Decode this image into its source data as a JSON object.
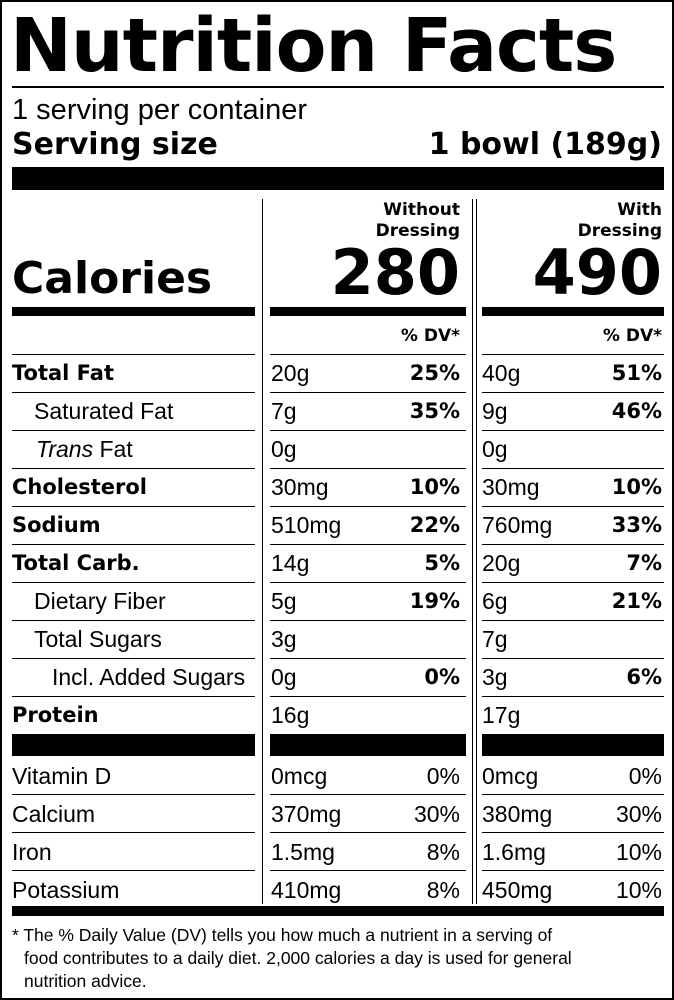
{
  "title": "Nutrition Facts",
  "servings_per_container": "1 serving per container",
  "serving_size_label": "Serving size",
  "serving_size_value": "1 bowl (189g)",
  "columns": [
    {
      "header_line1": "Without",
      "header_line2": "Dressing",
      "calories": "280",
      "dv_header": "% DV*"
    },
    {
      "header_line1": "With",
      "header_line2": "Dressing",
      "calories": "490",
      "dv_header": "% DV*"
    }
  ],
  "calories_label": "Calories",
  "nutrients": [
    {
      "label": "Total Fat",
      "col1_amount": "20g",
      "col1_dv": "25%",
      "col2_amount": "40g",
      "col2_dv": "51%"
    },
    {
      "label": "Saturated Fat",
      "col1_amount": "7g",
      "col1_dv": "35%",
      "col2_amount": "9g",
      "col2_dv": "46%"
    },
    {
      "label_italic": "Trans",
      "label": " Fat",
      "col1_amount": "0g",
      "col1_dv": "",
      "col2_amount": "0g",
      "col2_dv": ""
    },
    {
      "label": "Cholesterol",
      "col1_amount": "30mg",
      "col1_dv": "10%",
      "col2_amount": "30mg",
      "col2_dv": "10%"
    },
    {
      "label": "Sodium",
      "col1_amount": "510mg",
      "col1_dv": "22%",
      "col2_amount": "760mg",
      "col2_dv": "33%"
    },
    {
      "label": "Total Carb.",
      "col1_amount": "14g",
      "col1_dv": "5%",
      "col2_amount": "20g",
      "col2_dv": "7%"
    },
    {
      "label": "Dietary Fiber",
      "col1_amount": "5g",
      "col1_dv": "19%",
      "col2_amount": "6g",
      "col2_dv": "21%"
    },
    {
      "label": "Total Sugars",
      "col1_amount": "3g",
      "col1_dv": "",
      "col2_amount": "7g",
      "col2_dv": ""
    },
    {
      "label": "Incl. Added Sugars",
      "col1_amount": "0g",
      "col1_dv": "0%",
      "col2_amount": "3g",
      "col2_dv": "6%"
    },
    {
      "label": "Protein",
      "col1_amount": "16g",
      "col1_dv": "",
      "col2_amount": "17g",
      "col2_dv": ""
    }
  ],
  "vitamins": [
    {
      "label": "Vitamin D",
      "col1_amount": "0mcg",
      "col1_dv": "0%",
      "col2_amount": "0mcg",
      "col2_dv": "0%"
    },
    {
      "label": "Calcium",
      "col1_amount": "370mg",
      "col1_dv": "30%",
      "col2_amount": "380mg",
      "col2_dv": "30%"
    },
    {
      "label": "Iron",
      "col1_amount": "1.5mg",
      "col1_dv": "8%",
      "col2_amount": "1.6mg",
      "col2_dv": "10%"
    },
    {
      "label": "Potassium",
      "col1_amount": "410mg",
      "col1_dv": "8%",
      "col2_amount": "450mg",
      "col2_dv": "10%"
    }
  ],
  "footnote": {
    "line1": "* The % Daily Value (DV) tells you how much a nutrient in a serving of",
    "line2": "food contributes to a daily diet. 2,000 calories a day is used for general",
    "line3": "nutrition advice."
  }
}
